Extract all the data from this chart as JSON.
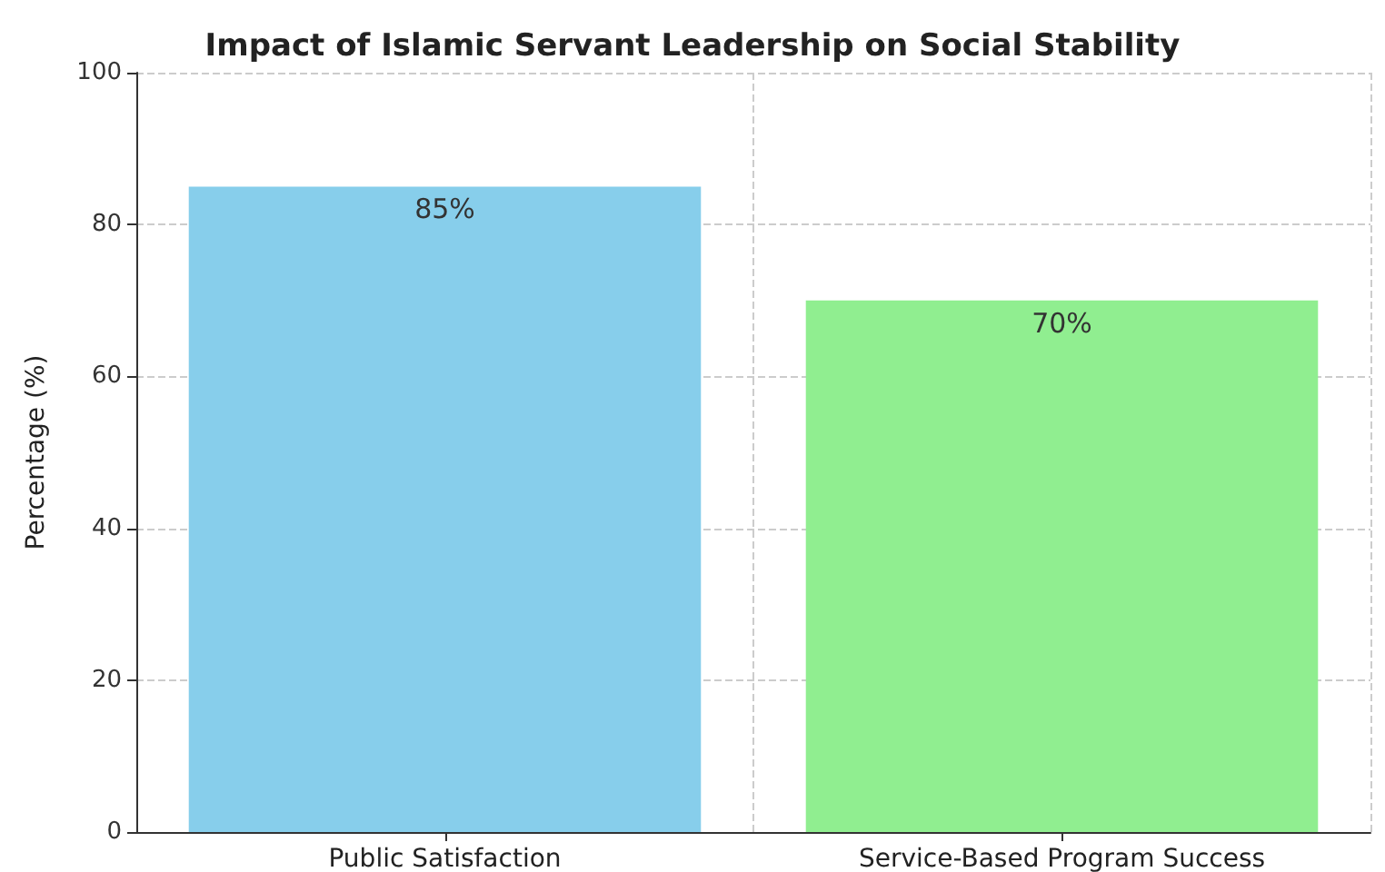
{
  "chart_data": {
    "type": "bar",
    "title": "Impact of Islamic Servant Leadership on Social Stability",
    "ylabel": "Percentage (%)",
    "categories": [
      "Public Satisfaction",
      "Service-Based Program Success"
    ],
    "values": [
      85,
      70
    ],
    "colors": [
      "#87ceeb",
      "#90ee90"
    ],
    "value_labels": [
      "85%",
      "70%"
    ],
    "ylim": [
      0,
      100
    ],
    "yticks": [
      0,
      20,
      40,
      60,
      80,
      100
    ],
    "grid": true
  }
}
